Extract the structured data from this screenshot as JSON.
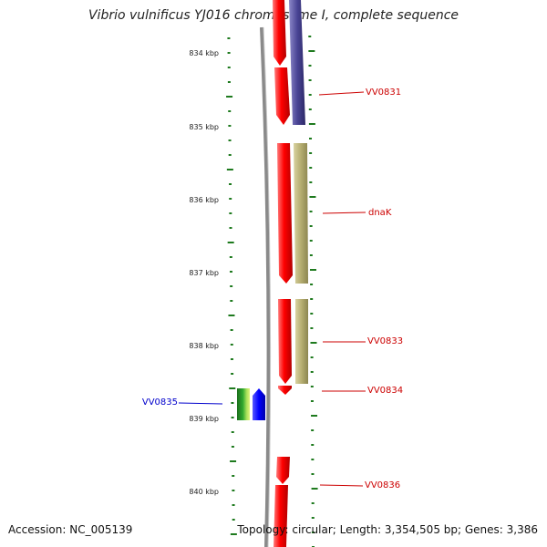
{
  "title": "Vibrio vulnificus YJ016 chromosome I, complete sequence",
  "footer": {
    "accession": "Accession: NC_005139",
    "info": "Topology: circular; Length: 3,354,505 bp; Genes: 3,386"
  },
  "colors": {
    "ruler": "#1e7a1e",
    "backbone": "#808080",
    "forward_gene": "#ff0000",
    "reverse_gene": "#403c8a",
    "olive_track": "#b5ad70",
    "label_right": "#cc0000",
    "label_left": "#0000cc",
    "green_feature": "#1e8f1e",
    "blue_feature": "#0000ff"
  },
  "ruler": {
    "unit": "kbp",
    "ticks": [
      "834 kbp",
      "835 kbp",
      "836 kbp",
      "837 kbp",
      "838 kbp",
      "839 kbp",
      "840 kbp"
    ]
  },
  "labels": [
    {
      "name": "VV0831",
      "side": "right"
    },
    {
      "name": "dnaK",
      "side": "right"
    },
    {
      "name": "VV0833",
      "side": "right"
    },
    {
      "name": "VV0834",
      "side": "right"
    },
    {
      "name": "VV0835",
      "side": "left"
    },
    {
      "name": "VV0836",
      "side": "right"
    }
  ]
}
